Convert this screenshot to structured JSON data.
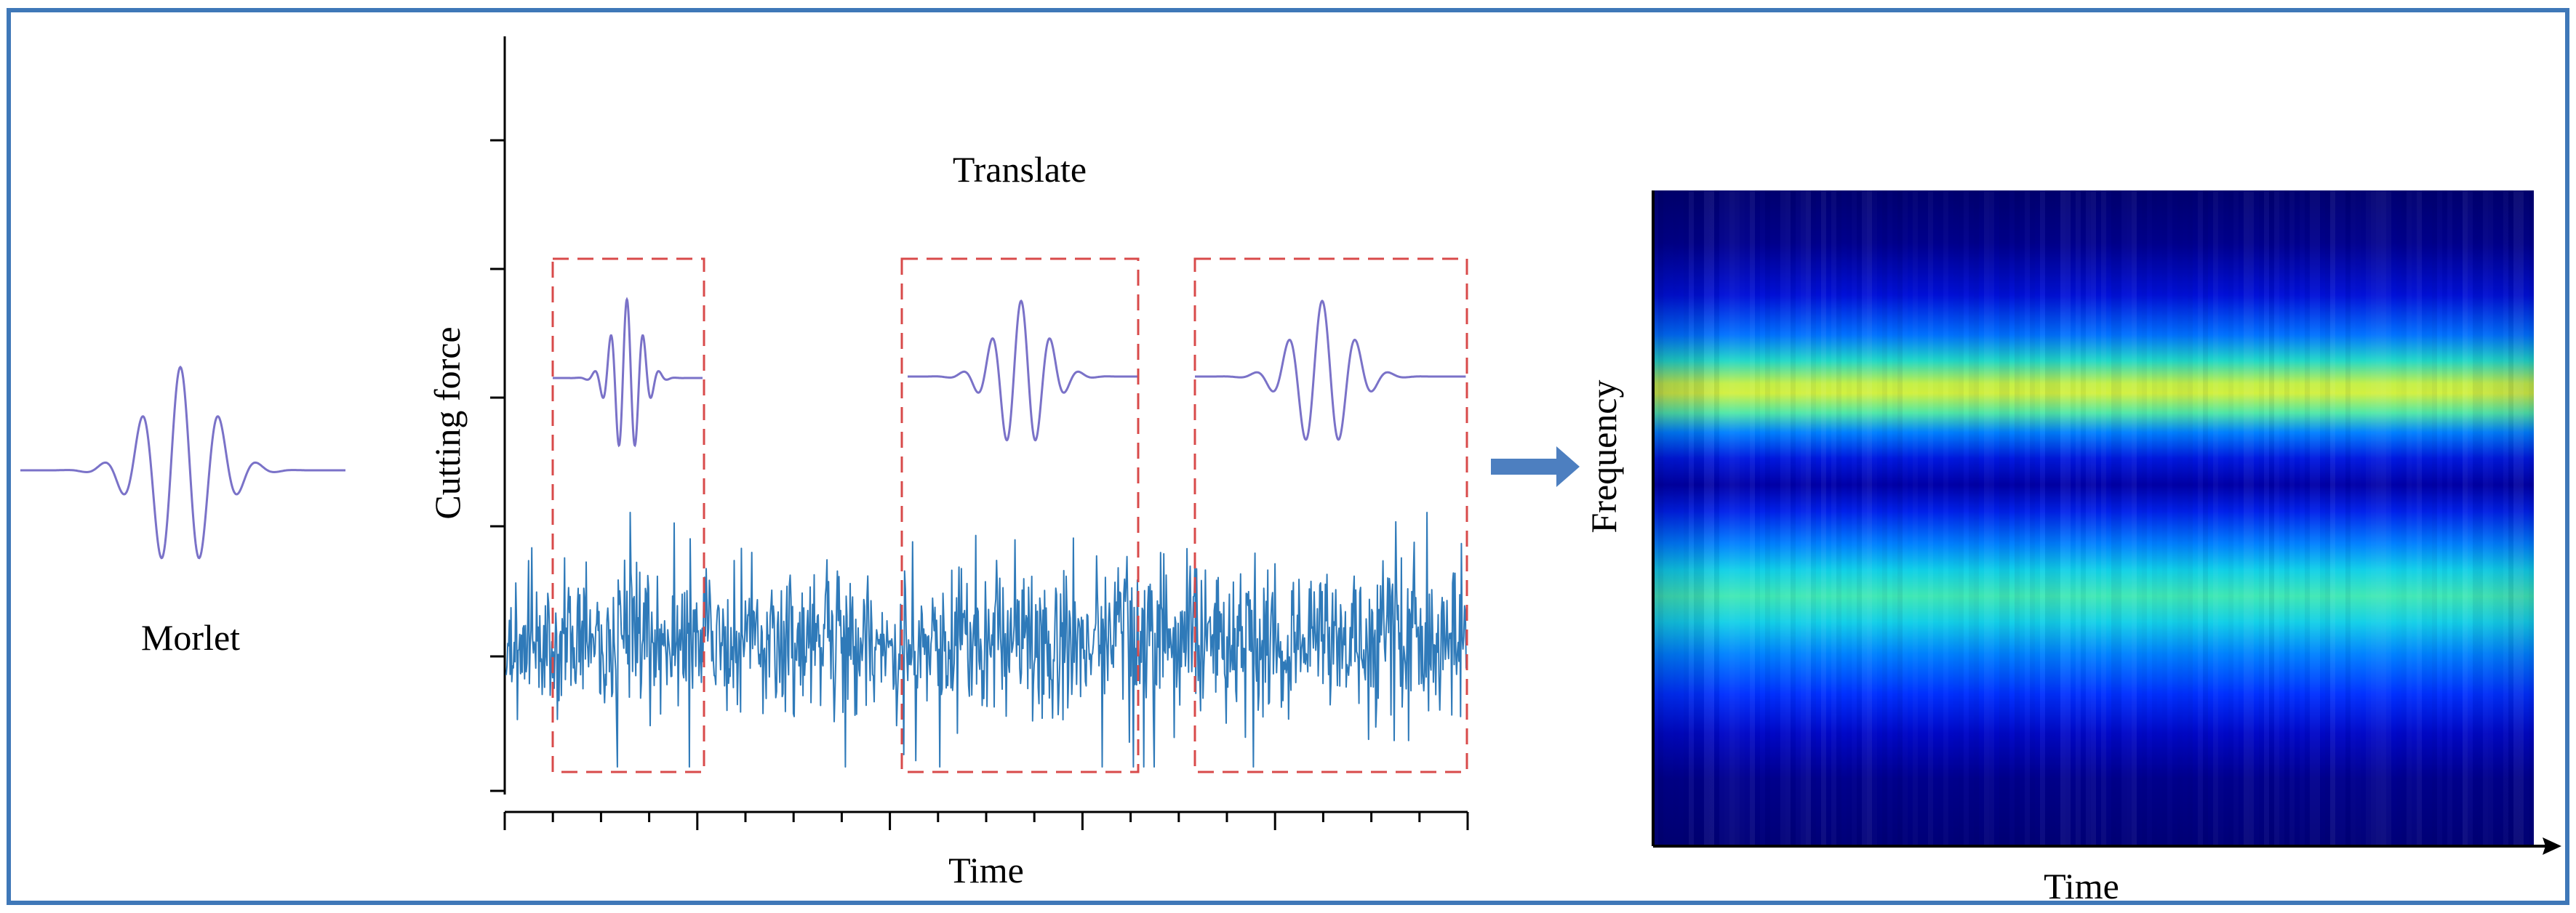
{
  "labels": {
    "morlet": "Morlet",
    "translate": "Translate",
    "cutting_force": "Cutting force",
    "time": "Time",
    "frequency": "Frequency",
    "time_right": "Time"
  },
  "colors": {
    "frame": "#3f78b8",
    "wavelet": "#7a72c8",
    "signal": "#2f7ab9",
    "dashed_box": "#d84a4a",
    "arrow": "#4d7fc0",
    "axis": "#000000"
  },
  "icons": {
    "transform_arrow": "arrow-right-icon"
  },
  "scalogram": {
    "colormap": "jet",
    "bands": [
      {
        "center_fraction": 0.3,
        "peak_value": 0.68
      },
      {
        "center_fraction": 0.62,
        "peak_value": 0.52
      }
    ]
  }
}
